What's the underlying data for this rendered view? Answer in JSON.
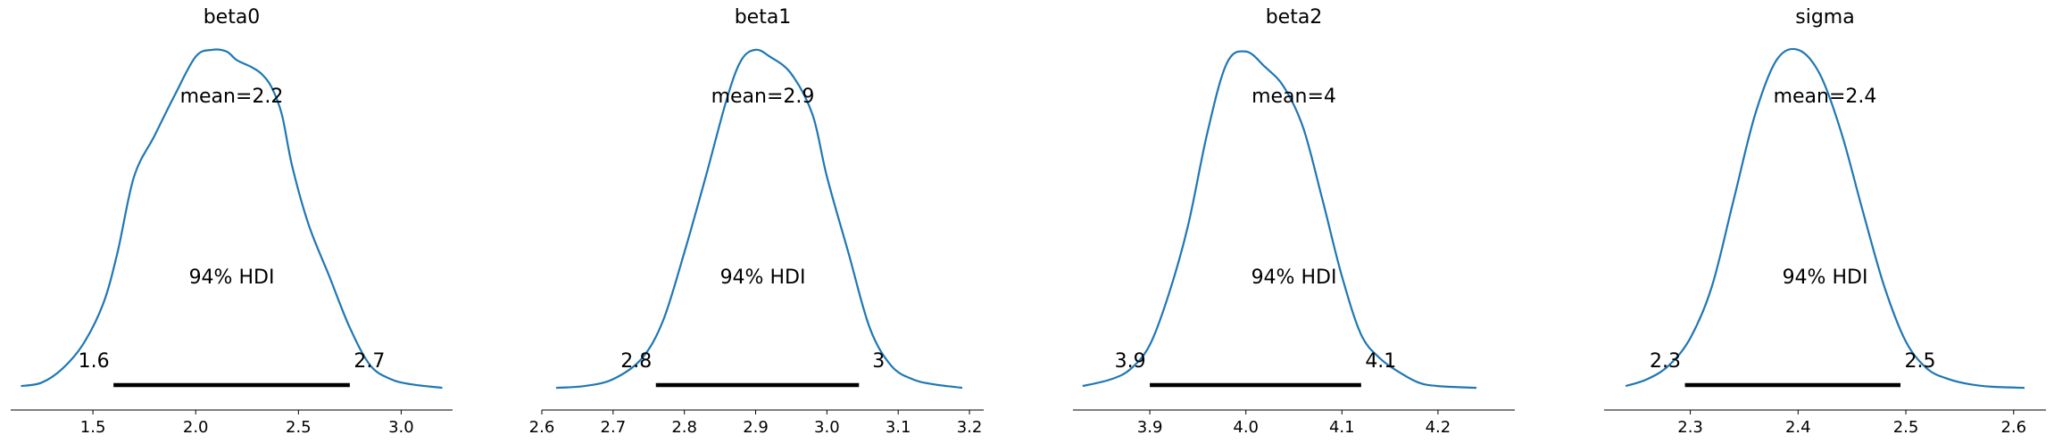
{
  "chart_data": [
    {
      "type": "area",
      "title": "beta0",
      "mean_label": "mean=2.2",
      "hdi_label": "94% HDI",
      "hdi": [
        1.6,
        2.7
      ],
      "hdi_exact": [
        1.6,
        2.75
      ],
      "hdi_low_label": "1.6",
      "hdi_high_label": "2.7",
      "xlim": [
        1.1,
        3.25
      ],
      "ticks": [
        1.5,
        2.0,
        2.5,
        3.0
      ],
      "tick_labels": [
        "1.5",
        "2.0",
        "2.5",
        "3.0"
      ],
      "density": {
        "x": [
          1.15,
          1.25,
          1.35,
          1.45,
          1.55,
          1.62,
          1.7,
          1.8,
          1.9,
          2.0,
          2.08,
          2.15,
          2.2,
          2.27,
          2.32,
          2.37,
          2.42,
          2.47,
          2.55,
          2.65,
          2.75,
          2.85,
          2.95,
          3.05,
          3.2
        ],
        "y": [
          0.01,
          0.02,
          0.06,
          0.13,
          0.25,
          0.4,
          0.62,
          0.74,
          0.86,
          0.97,
          0.99,
          0.985,
          0.96,
          0.94,
          0.92,
          0.88,
          0.8,
          0.65,
          0.48,
          0.33,
          0.18,
          0.07,
          0.03,
          0.015,
          0.005
        ]
      }
    },
    {
      "type": "area",
      "title": "beta1",
      "mean_label": "mean=2.9",
      "hdi_label": "94% HDI",
      "hdi": [
        2.8,
        3.0
      ],
      "hdi_exact": [
        2.76,
        3.045
      ],
      "hdi_low_label": "2.8",
      "hdi_high_label": "3",
      "xlim": [
        2.6,
        3.22
      ],
      "ticks": [
        2.6,
        2.7,
        2.8,
        2.9,
        3.0,
        3.1,
        3.2
      ],
      "tick_labels": [
        "2.6",
        "2.7",
        "2.8",
        "2.9",
        "3.0",
        "3.1",
        "3.2"
      ],
      "density": {
        "x": [
          2.62,
          2.66,
          2.7,
          2.74,
          2.77,
          2.8,
          2.83,
          2.86,
          2.88,
          2.9,
          2.92,
          2.95,
          2.98,
          3.0,
          3.03,
          3.06,
          3.09,
          3.12,
          3.15,
          3.19
        ],
        "y": [
          0.005,
          0.01,
          0.03,
          0.09,
          0.2,
          0.4,
          0.62,
          0.85,
          0.96,
          0.99,
          0.97,
          0.92,
          0.8,
          0.62,
          0.4,
          0.18,
          0.07,
          0.03,
          0.015,
          0.005
        ]
      }
    },
    {
      "type": "area",
      "title": "beta2",
      "mean_label": "mean=4",
      "hdi_label": "94% HDI",
      "hdi": [
        3.9,
        4.1
      ],
      "hdi_exact": [
        3.9,
        4.12
      ],
      "hdi_low_label": "3.9",
      "hdi_high_label": "4.1",
      "xlim": [
        3.82,
        4.28
      ],
      "ticks": [
        3.9,
        4.0,
        4.1,
        4.2
      ],
      "tick_labels": [
        "3.9",
        "4.0",
        "4.1",
        "4.2"
      ],
      "density": {
        "x": [
          3.83,
          3.86,
          3.88,
          3.9,
          3.92,
          3.94,
          3.96,
          3.98,
          4.0,
          4.02,
          4.04,
          4.06,
          4.08,
          4.1,
          4.12,
          4.14,
          4.16,
          4.18,
          4.2,
          4.24
        ],
        "y": [
          0.01,
          0.03,
          0.06,
          0.13,
          0.28,
          0.48,
          0.75,
          0.95,
          0.985,
          0.94,
          0.88,
          0.76,
          0.55,
          0.33,
          0.16,
          0.09,
          0.05,
          0.02,
          0.01,
          0.005
        ]
      }
    },
    {
      "type": "area",
      "title": "sigma",
      "mean_label": "mean=2.4",
      "hdi_label": "94% HDI",
      "hdi": [
        2.3,
        2.5
      ],
      "hdi_exact": [
        2.295,
        2.495
      ],
      "hdi_low_label": "2.3",
      "hdi_high_label": "2.5",
      "xlim": [
        2.22,
        2.63
      ],
      "ticks": [
        2.3,
        2.4,
        2.5,
        2.6
      ],
      "tick_labels": [
        "2.3",
        "2.4",
        "2.5",
        "2.6"
      ],
      "density": {
        "x": [
          2.24,
          2.26,
          2.28,
          2.3,
          2.32,
          2.34,
          2.36,
          2.38,
          2.4,
          2.42,
          2.44,
          2.46,
          2.48,
          2.5,
          2.52,
          2.54,
          2.56,
          2.58,
          2.61
        ],
        "y": [
          0.01,
          0.03,
          0.07,
          0.15,
          0.3,
          0.55,
          0.8,
          0.96,
          0.99,
          0.92,
          0.75,
          0.52,
          0.3,
          0.14,
          0.06,
          0.03,
          0.015,
          0.008,
          0.005
        ]
      }
    }
  ],
  "colors": {
    "curve": "#1f77b4",
    "hdi_bar": "#000000",
    "axis": "#000000"
  }
}
